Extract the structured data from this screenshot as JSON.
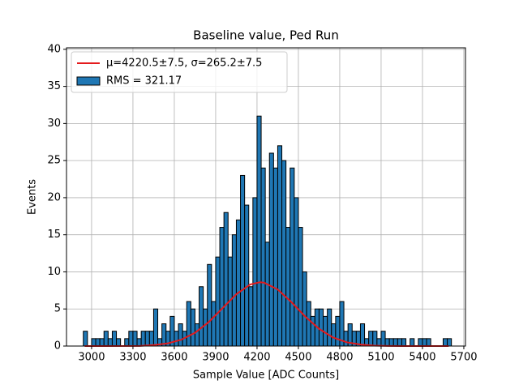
{
  "chart_data": {
    "type": "histogram",
    "title": "Baseline value, Ped Run",
    "xlabel": "Sample Value [ADC Counts]",
    "ylabel": "Events",
    "xlim": [
      2818,
      5712
    ],
    "ylim": [
      0,
      40.2
    ],
    "xticks": [
      3000,
      3300,
      3600,
      3900,
      4200,
      4500,
      4800,
      5100,
      5400,
      5700
    ],
    "yticks": [
      0,
      5,
      10,
      15,
      20,
      25,
      30,
      35,
      40
    ],
    "grid": true,
    "legend": "upper left",
    "series": [
      {
        "name": "μ=4220.5±7.5, σ=265.2±7.5",
        "type": "line",
        "color": "#e41a1c",
        "x": [
          2950,
          3350,
          3450,
          3550,
          3650,
          3750,
          3850,
          3950,
          4050,
          4150,
          4220,
          4250,
          4350,
          4450,
          4550,
          4650,
          4750,
          4850,
          4950,
          5050,
          5150,
          5250,
          5590
        ],
        "values": [
          0,
          0.01,
          0.13,
          0.35,
          0.85,
          1.78,
          3.24,
          5.11,
          6.99,
          8.3,
          8.6,
          8.55,
          7.63,
          5.91,
          3.97,
          2.32,
          1.17,
          0.51,
          0.2,
          0.06,
          0.02,
          0,
          0
        ]
      },
      {
        "name": "RMS = 321.17",
        "type": "histogram",
        "color": "#1f77b4",
        "edgecolor": "#000000",
        "bins": [
          2940,
          2970,
          3000,
          3030,
          3060,
          3090,
          3120,
          3150,
          3180,
          3210,
          3240,
          3270,
          3300,
          3330,
          3360,
          3390,
          3420,
          3450,
          3480,
          3510,
          3540,
          3570,
          3600,
          3630,
          3660,
          3690,
          3720,
          3750,
          3780,
          3810,
          3840,
          3870,
          3900,
          3930,
          3960,
          3990,
          4020,
          4050,
          4080,
          4110,
          4140,
          4170,
          4200,
          4230,
          4260,
          4290,
          4320,
          4350,
          4380,
          4410,
          4440,
          4470,
          4500,
          4530,
          4560,
          4590,
          4620,
          4650,
          4680,
          4710,
          4740,
          4770,
          4800,
          4830,
          4860,
          4890,
          4920,
          4950,
          4980,
          5010,
          5040,
          5070,
          5100,
          5130,
          5160,
          5190,
          5220,
          5250,
          5280,
          5310,
          5340,
          5370,
          5400,
          5430,
          5460,
          5490,
          5520,
          5550,
          5580,
          5610
        ],
        "values": [
          2,
          0,
          1,
          1,
          1,
          2,
          1,
          2,
          1,
          0,
          1,
          2,
          2,
          1,
          2,
          2,
          2,
          5,
          1,
          3,
          2,
          4,
          2,
          3,
          2,
          6,
          5,
          3,
          8,
          5,
          11,
          6,
          12,
          16,
          18,
          12,
          15,
          17,
          23,
          19,
          8,
          20,
          31,
          24,
          14,
          26,
          24,
          27,
          25,
          16,
          24,
          20,
          16,
          10,
          6,
          4,
          5,
          5,
          4,
          5,
          3,
          4,
          6,
          2,
          3,
          2,
          2,
          3,
          1,
          2,
          2,
          1,
          2,
          1,
          1,
          1,
          1,
          1,
          0,
          1,
          0,
          1,
          1,
          1,
          0,
          0,
          0,
          1,
          1
        ]
      }
    ]
  }
}
